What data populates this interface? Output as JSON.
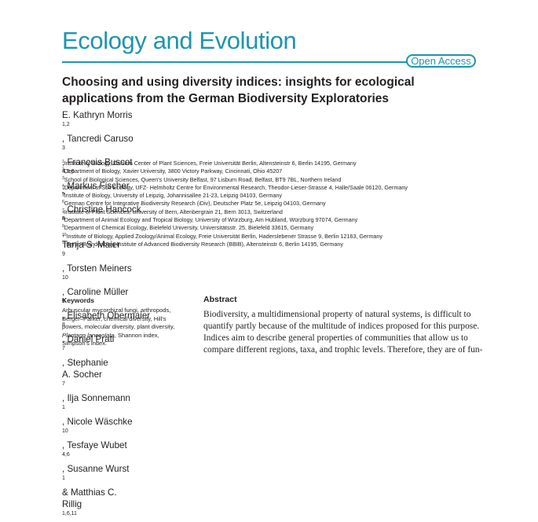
{
  "journal": {
    "name": "Ecology and Evolution",
    "badge": "Open Access"
  },
  "article": {
    "title_lines": [
      "Choosing and using diversity indices: insights for ecological",
      "applications from the German Biodiversity Exploratories"
    ]
  },
  "authors": {
    "line1": [
      "E. Kathryn Morris",
      "1,2",
      ", Tancredi Caruso",
      "3",
      ", François Buscot",
      "4,5,6",
      ", Markus Fischer",
      "7",
      ", Christine Hancock",
      "8",
      ","
    ],
    "line2": [
      "Tanja S. Maier",
      "9",
      ", Torsten Meiners",
      "10",
      ", Caroline Müller",
      "9",
      ", Elisabeth Obermaier",
      "8",
      ", Daniel Prati",
      "7",
      ", Stephanie"
    ],
    "line3": [
      "A. Socher",
      "7",
      ", Ilja Sonnemann",
      "1",
      ", Nicole Wäschke",
      "10",
      ", Tesfaye Wubet",
      "4,6",
      ", Susanne Wurst",
      "1",
      " & Matthias C."
    ],
    "line4": [
      "Rillig",
      "1,6,11"
    ]
  },
  "affiliations": [
    {
      "num": "1",
      "text": "Institute of Biology, Dahlem Center of Plant Sciences, Freie Universität Berlin, Altensteinstr 6, Berlin 14195, Germany"
    },
    {
      "num": "2",
      "text": "Department of Biology, Xavier University, 3800 Victory Parkway, Cincinnati, Ohio 45207"
    },
    {
      "num": "3",
      "text": "School of Biological Sciences, Queen's University Belfast, 97 Lisburn Road, Belfast, BT9 7BL, Northern Ireland"
    },
    {
      "num": "4",
      "text": "Department of Soil Ecology, UFZ- Helmholtz Centre for Environmental Research, Theodor-Lieser-Strasse 4, Halle/Saale 06120, Germany"
    },
    {
      "num": "5",
      "text": "Institute of Biology, University of Leipzig, Johannisallee 21-23, Leipzig 04103, Germany"
    },
    {
      "num": "6",
      "text": "German Centre for Integrative Biodiversity Research (iDiv), Deutscher Platz 5e, Leipzig 04103, Germany"
    },
    {
      "num": "7",
      "text": "Institute of Plant Sciences, University of Bern, Altenbergrain 21, Bern 3013, Switzerland"
    },
    {
      "num": "8",
      "text": "Department of Animal Ecology and Tropical Biology, University of Würzburg, Am Hubland, Würzburg 97074, Germany"
    },
    {
      "num": "9",
      "text": "Department of Chemical Ecology, Bielefeld University, Universitätsstr. 25, Bielefeld 33615, Germany"
    },
    {
      "num": "10",
      "text": "Institute of Biology, Applied Zoology/Animal Ecology, Freie Universität Berlin, Haderslebener Strasse 9, Berlin 12163, Germany"
    },
    {
      "num": "11",
      "text": "Berlin-Brandenburg Institute of Advanced Biodiversity Research (BBIB), Altensteinstr 6, Berlin 14195, Germany"
    }
  ],
  "keywords": {
    "heading": "Keywords",
    "lines": [
      "Arbuscular mycorrhizal fungi, arthropods,",
      "Berger–Parker, chemical diversity, Hill's",
      "powers, molecular diversity, plant diversity,",
      "Plantago lanceolata, Shannon index,",
      "Simpson's index."
    ]
  },
  "abstract": {
    "heading": "Abstract",
    "lines": [
      "Biodiversity, a multidimensional property of natural systems, is difficult to",
      "quantify partly because of the multitude of indices proposed for this purpose.",
      "Indices aim to describe general properties of communities that allow us to",
      "compare different regions, taxa, and trophic levels. Therefore, they are of fun-"
    ]
  }
}
